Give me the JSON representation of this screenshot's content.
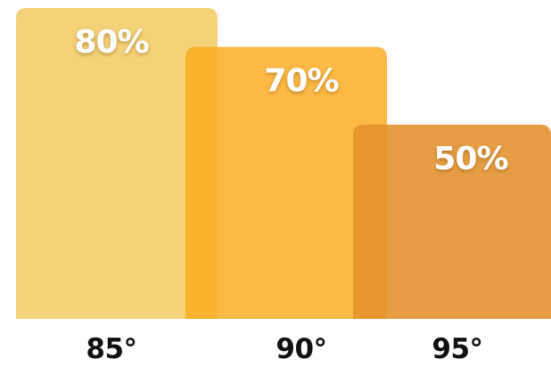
{
  "chart_data": {
    "type": "bar",
    "categories": [
      "85°",
      "90°",
      "95°"
    ],
    "values": [
      80,
      70,
      50
    ],
    "data_labels": [
      "80%",
      "70%",
      "50%"
    ],
    "ylim": [
      0,
      100
    ],
    "overlapping_bars": true,
    "grid": false,
    "legend": "none",
    "colors": [
      "#f2ce6d",
      "#fbaa1c",
      "#e3902a"
    ],
    "opacity": [
      0.92,
      0.82,
      0.88
    ],
    "label_color": "#ffffff",
    "category_label_color": "#111111"
  }
}
